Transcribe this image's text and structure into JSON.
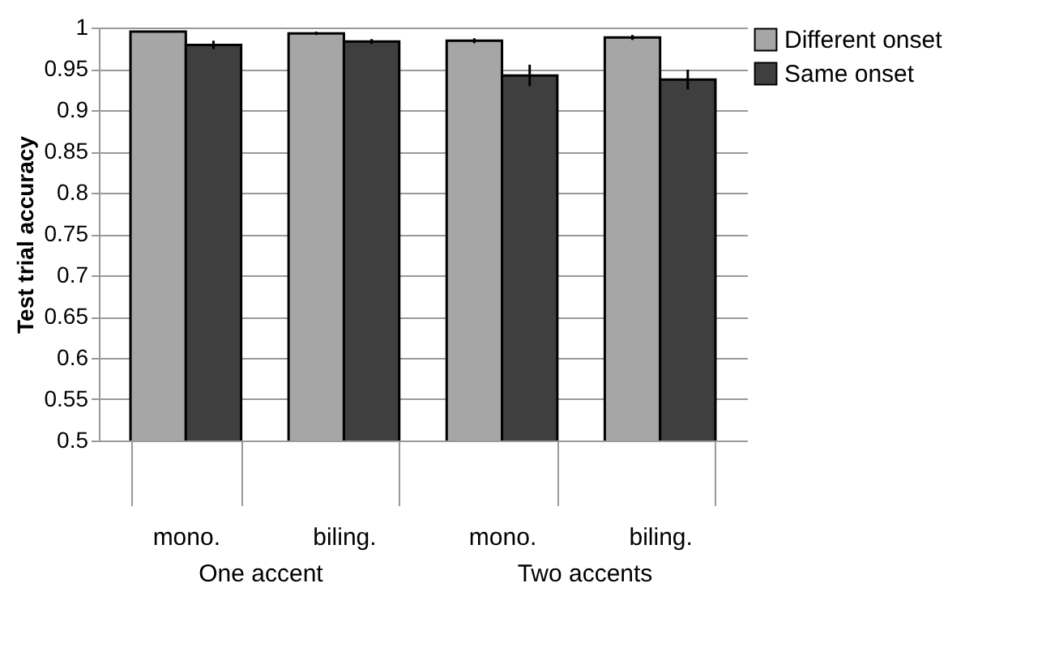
{
  "chart_data": {
    "type": "bar",
    "ylabel": "Test trial accuracy",
    "categories": [
      "mono.",
      "biling.",
      "mono.",
      "biling."
    ],
    "series": [
      {
        "name": "Different onset",
        "color": "#a6a6a6",
        "values": [
          0.995,
          0.993,
          0.984,
          0.988
        ],
        "errors": [
          null,
          0.002,
          0.003,
          0.003
        ]
      },
      {
        "name": "Same onset",
        "color": "#3f3f3f",
        "values": [
          0.979,
          0.983,
          0.942,
          0.937
        ],
        "errors": [
          0.005,
          0.003,
          0.013,
          0.012
        ]
      }
    ],
    "annotations": [
      "One accent",
      "Two accents"
    ],
    "ylim": [
      0.5,
      1
    ],
    "yticks": [
      0.5,
      0.55,
      0.6,
      0.65,
      0.7,
      0.75,
      0.8,
      0.85,
      0.9,
      0.95,
      1
    ],
    "grid": "y",
    "legend": "top right"
  }
}
